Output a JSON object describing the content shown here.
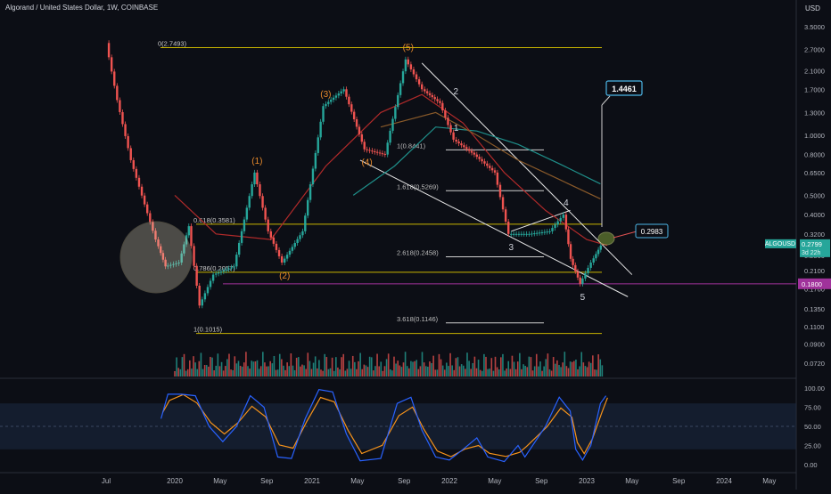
{
  "chart_title": "Algorand / United States Dollar, 1W, COINBASE",
  "currency_label": "USD",
  "colors": {
    "background": "#0c0e15",
    "candle_up": "#26a69a",
    "candle_down": "#ef5350",
    "fib": "#c8b400",
    "trendline": "#e6e6e6",
    "ma_teal": "#1f8f8a",
    "ma_red": "#b02a2a",
    "ma_orange": "#8a5a2a",
    "level_180": "#a0329b",
    "stoch_k": "#2962ff",
    "stoch_d": "#f7931a",
    "stoch_band": "#1b2a44",
    "highlight_circle": "#f2e9c9"
  },
  "chart_data": {
    "type": "line",
    "symbol": "ALGOUSD",
    "price_scale": "log",
    "price_ticks": [
      "3.5000",
      "2.7000",
      "2.1000",
      "1.7000",
      "1.3000",
      "1.0000",
      "0.8000",
      "0.6500",
      "0.5000",
      "0.4000",
      "0.3200",
      "0.2500",
      "0.2100",
      "0.1700",
      "0.1350",
      "0.1100",
      "0.0900",
      "0.0720"
    ],
    "price_tick_values": [
      3.5,
      2.7,
      2.1,
      1.7,
      1.3,
      1.0,
      0.8,
      0.65,
      0.5,
      0.4,
      0.32,
      0.25,
      0.21,
      0.17,
      0.135,
      0.11,
      0.09,
      0.072
    ],
    "time_ticks": [
      "Jul",
      "2020",
      "May",
      "Sep",
      "2021",
      "May",
      "Sep",
      "2022",
      "May",
      "Sep",
      "2023",
      "May",
      "Sep",
      "2024",
      "May"
    ],
    "price_path": [
      {
        "t": 2019.52,
        "p": 2.9
      },
      {
        "t": 2019.6,
        "p": 1.5
      },
      {
        "t": 2019.7,
        "p": 0.75
      },
      {
        "t": 2019.8,
        "p": 0.45
      },
      {
        "t": 2019.88,
        "p": 0.3
      },
      {
        "t": 2019.95,
        "p": 0.22
      },
      {
        "t": 2020.05,
        "p": 0.23
      },
      {
        "t": 2020.12,
        "p": 0.35
      },
      {
        "t": 2020.2,
        "p": 0.14
      },
      {
        "t": 2020.3,
        "p": 0.2
      },
      {
        "t": 2020.45,
        "p": 0.22
      },
      {
        "t": 2020.6,
        "p": 0.65
      },
      {
        "t": 2020.7,
        "p": 0.33
      },
      {
        "t": 2020.8,
        "p": 0.23
      },
      {
        "t": 2020.95,
        "p": 0.33
      },
      {
        "t": 2021.1,
        "p": 1.4
      },
      {
        "t": 2021.25,
        "p": 1.7
      },
      {
        "t": 2021.4,
        "p": 0.85
      },
      {
        "t": 2021.55,
        "p": 0.8
      },
      {
        "t": 2021.7,
        "p": 2.4
      },
      {
        "t": 2021.82,
        "p": 1.7
      },
      {
        "t": 2021.95,
        "p": 1.45
      },
      {
        "t": 2022.05,
        "p": 0.95
      },
      {
        "t": 2022.2,
        "p": 0.8
      },
      {
        "t": 2022.35,
        "p": 0.65
      },
      {
        "t": 2022.45,
        "p": 0.32
      },
      {
        "t": 2022.6,
        "p": 0.32
      },
      {
        "t": 2022.75,
        "p": 0.33
      },
      {
        "t": 2022.85,
        "p": 0.4
      },
      {
        "t": 2022.9,
        "p": 0.24
      },
      {
        "t": 2022.97,
        "p": 0.18
      },
      {
        "t": 2023.05,
        "p": 0.23
      },
      {
        "t": 2023.12,
        "p": 0.2799
      }
    ],
    "fib_levels": [
      {
        "label": "0(2.7493)",
        "value": 2.7493
      },
      {
        "label": "0.618(0.3581)",
        "value": 0.3581
      },
      {
        "label": "0.786(0.2057)",
        "value": 0.2057
      },
      {
        "label": "1(0.1015)",
        "value": 0.1015
      }
    ],
    "fib_extensions": [
      {
        "label": "1(0.8441)",
        "value": 0.8441
      },
      {
        "label": "1.618(0.5269)",
        "value": 0.5269
      },
      {
        "label": "2.618(0.2458)",
        "value": 0.2458
      },
      {
        "label": "3.618(0.1146)",
        "value": 0.1146
      }
    ],
    "wave_labels": [
      {
        "label": "(1)",
        "t": 2020.6,
        "p": 0.65
      },
      {
        "label": "(2)",
        "t": 2020.8,
        "p": 0.23
      },
      {
        "label": "(3)",
        "t": 2021.1,
        "p": 1.4
      },
      {
        "label": "(4)",
        "t": 2021.4,
        "p": 0.85
      },
      {
        "label": "(5)",
        "t": 2021.7,
        "p": 2.4
      },
      {
        "label": "1",
        "t": 2022.05,
        "p": 0.95
      },
      {
        "label": "2",
        "t": 2021.95,
        "p": 1.45
      },
      {
        "label": "3",
        "t": 2022.45,
        "p": 0.32
      },
      {
        "label": "4",
        "t": 2022.85,
        "p": 0.4
      },
      {
        "label": "5",
        "t": 2022.97,
        "p": 0.18
      }
    ],
    "target_label": "1.4461",
    "target_value": 1.4461,
    "resistance_label": "0.2983",
    "resistance_value": 0.2983,
    "current_symbol_label": "ALGOUSD",
    "current_price_label": "0.2799",
    "current_price_value": 0.2799,
    "countdown_label": "3d 22h",
    "support_label": "0.1800",
    "support_value": 0.18,
    "stochastic": {
      "ticks": [
        "100.00",
        "75.00",
        "50.00",
        "25.00",
        "0.00"
      ],
      "tick_values": [
        100,
        75,
        50,
        25,
        0
      ],
      "band": [
        20,
        80
      ],
      "k": [
        {
          "t": 2019.9,
          "v": 60
        },
        {
          "t": 2019.95,
          "v": 92
        },
        {
          "t": 2020.05,
          "v": 92
        },
        {
          "t": 2020.15,
          "v": 90
        },
        {
          "t": 2020.25,
          "v": 50
        },
        {
          "t": 2020.35,
          "v": 30
        },
        {
          "t": 2020.45,
          "v": 50
        },
        {
          "t": 2020.55,
          "v": 90
        },
        {
          "t": 2020.65,
          "v": 75
        },
        {
          "t": 2020.75,
          "v": 10
        },
        {
          "t": 2020.85,
          "v": 8
        },
        {
          "t": 2020.95,
          "v": 60
        },
        {
          "t": 2021.05,
          "v": 98
        },
        {
          "t": 2021.15,
          "v": 95
        },
        {
          "t": 2021.25,
          "v": 40
        },
        {
          "t": 2021.35,
          "v": 5
        },
        {
          "t": 2021.5,
          "v": 8
        },
        {
          "t": 2021.62,
          "v": 80
        },
        {
          "t": 2021.72,
          "v": 88
        },
        {
          "t": 2021.8,
          "v": 45
        },
        {
          "t": 2021.9,
          "v": 10
        },
        {
          "t": 2022.0,
          "v": 6
        },
        {
          "t": 2022.1,
          "v": 20
        },
        {
          "t": 2022.2,
          "v": 35
        },
        {
          "t": 2022.28,
          "v": 10
        },
        {
          "t": 2022.4,
          "v": 4
        },
        {
          "t": 2022.5,
          "v": 25
        },
        {
          "t": 2022.55,
          "v": 10
        },
        {
          "t": 2022.7,
          "v": 50
        },
        {
          "t": 2022.8,
          "v": 88
        },
        {
          "t": 2022.88,
          "v": 70
        },
        {
          "t": 2022.92,
          "v": 20
        },
        {
          "t": 2022.97,
          "v": 6
        },
        {
          "t": 2023.03,
          "v": 25
        },
        {
          "t": 2023.1,
          "v": 80
        },
        {
          "t": 2023.14,
          "v": 90
        }
      ]
    }
  }
}
